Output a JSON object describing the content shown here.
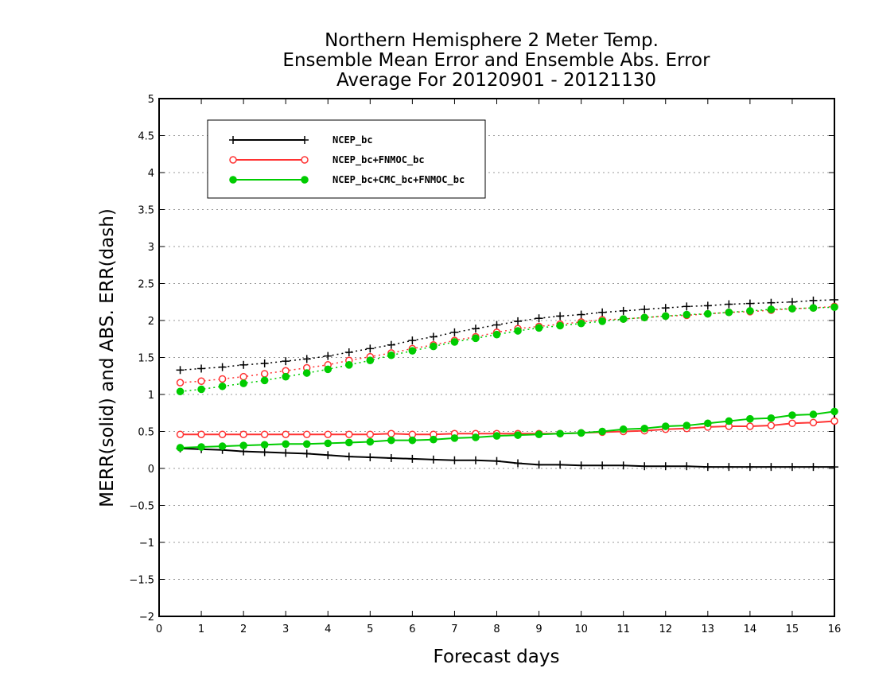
{
  "chart_data": {
    "type": "line",
    "title_lines": [
      "Northern Hemisphere 2 Meter Temp.",
      "Ensemble Mean Error and Ensemble Abs. Error",
      "Average For 20120901 - 20121130"
    ],
    "xlabel": "Forecast days",
    "ylabel": "MERR(solid) and ABS. ERR(dash)",
    "xlim": [
      0,
      16
    ],
    "ylim": [
      -2,
      5
    ],
    "xticks": [
      0,
      1,
      2,
      3,
      4,
      5,
      6,
      7,
      8,
      9,
      10,
      11,
      12,
      13,
      14,
      15,
      16
    ],
    "yticks": [
      -2,
      -1.5,
      -1,
      -0.5,
      0,
      0.5,
      1,
      1.5,
      2,
      2.5,
      3,
      3.5,
      4,
      4.5,
      5
    ],
    "grid": true,
    "legend_position": "top-left",
    "x": [
      0.5,
      1,
      1.5,
      2,
      2.5,
      3,
      3.5,
      4,
      4.5,
      5,
      5.5,
      6,
      6.5,
      7,
      7.5,
      8,
      8.5,
      9,
      9.5,
      10,
      10.5,
      11,
      11.5,
      12,
      12.5,
      13,
      13.5,
      14,
      14.5,
      15,
      15.5,
      16
    ],
    "series": [
      {
        "name": "NCEP_bc",
        "color": "#000000",
        "marker": "plus",
        "merr": [
          0.27,
          0.26,
          0.25,
          0.23,
          0.22,
          0.21,
          0.2,
          0.18,
          0.16,
          0.15,
          0.14,
          0.13,
          0.12,
          0.11,
          0.11,
          0.1,
          0.07,
          0.05,
          0.05,
          0.04,
          0.04,
          0.04,
          0.03,
          0.03,
          0.03,
          0.02,
          0.02,
          0.02,
          0.02,
          0.02,
          0.02,
          0.02
        ],
        "abs_err": [
          1.33,
          1.35,
          1.37,
          1.4,
          1.42,
          1.45,
          1.48,
          1.52,
          1.57,
          1.62,
          1.67,
          1.73,
          1.78,
          1.84,
          1.89,
          1.94,
          1.99,
          2.03,
          2.06,
          2.08,
          2.11,
          2.13,
          2.15,
          2.17,
          2.19,
          2.2,
          2.22,
          2.23,
          2.24,
          2.25,
          2.27,
          2.28
        ]
      },
      {
        "name": "NCEP_bc+FNMOC_bc",
        "color": "#ff3333",
        "marker": "open-circle",
        "merr": [
          0.46,
          0.46,
          0.46,
          0.46,
          0.46,
          0.46,
          0.46,
          0.46,
          0.46,
          0.46,
          0.47,
          0.46,
          0.46,
          0.47,
          0.47,
          0.47,
          0.47,
          0.47,
          0.47,
          0.48,
          0.49,
          0.5,
          0.51,
          0.53,
          0.54,
          0.56,
          0.57,
          0.57,
          0.58,
          0.61,
          0.62,
          0.64
        ],
        "abs_err": [
          1.16,
          1.18,
          1.21,
          1.24,
          1.28,
          1.32,
          1.36,
          1.4,
          1.46,
          1.51,
          1.56,
          1.62,
          1.67,
          1.73,
          1.78,
          1.84,
          1.89,
          1.92,
          1.95,
          1.98,
          2.01,
          2.02,
          2.04,
          2.06,
          2.07,
          2.09,
          2.11,
          2.12,
          2.14,
          2.16,
          2.17,
          2.19
        ]
      },
      {
        "name": "NCEP_bc+CMC_bc+FNMOC_bc",
        "color": "#00cc00",
        "marker": "filled-circle",
        "merr": [
          0.28,
          0.29,
          0.3,
          0.31,
          0.32,
          0.33,
          0.33,
          0.34,
          0.35,
          0.36,
          0.38,
          0.38,
          0.39,
          0.41,
          0.42,
          0.44,
          0.45,
          0.46,
          0.47,
          0.48,
          0.5,
          0.53,
          0.54,
          0.57,
          0.58,
          0.61,
          0.64,
          0.67,
          0.68,
          0.72,
          0.73,
          0.77
        ],
        "abs_err": [
          1.04,
          1.07,
          1.11,
          1.15,
          1.19,
          1.24,
          1.29,
          1.34,
          1.4,
          1.46,
          1.53,
          1.59,
          1.65,
          1.71,
          1.76,
          1.81,
          1.86,
          1.9,
          1.93,
          1.96,
          1.99,
          2.02,
          2.04,
          2.06,
          2.08,
          2.09,
          2.11,
          2.13,
          2.15,
          2.16,
          2.17,
          2.18
        ]
      }
    ]
  }
}
